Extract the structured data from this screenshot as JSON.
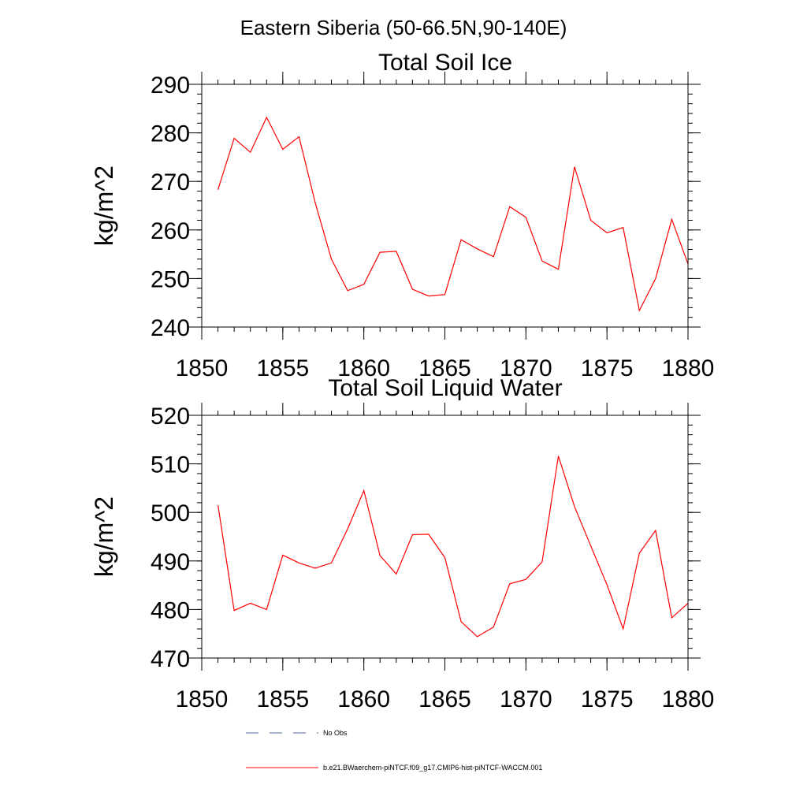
{
  "figure_title": "Eastern Siberia (50-66.5N,90-140E)",
  "chart_data": [
    {
      "type": "line",
      "title": "Total Soil Ice",
      "xlabel": "",
      "ylabel": "kg/m^2",
      "xlim": [
        1850,
        1880
      ],
      "ylim": [
        240,
        290
      ],
      "xticks": [
        1850,
        1855,
        1860,
        1865,
        1870,
        1875,
        1880
      ],
      "yticks": [
        240,
        250,
        260,
        270,
        280,
        290
      ],
      "x_minor_step": 1,
      "y_minor_step": 2,
      "grid": false,
      "series": [
        {
          "name": "b.e21.BWaerchem-piNTCF.f09_g17.CMIP6-hist-piNTCF-WACCM.001",
          "color": "#ff0000",
          "x": [
            1851,
            1852,
            1853,
            1854,
            1855,
            1856,
            1857,
            1858,
            1859,
            1860,
            1861,
            1862,
            1863,
            1864,
            1865,
            1866,
            1867,
            1868,
            1869,
            1870,
            1871,
            1872,
            1873,
            1874,
            1875,
            1876,
            1877,
            1878,
            1879,
            1880
          ],
          "y": [
            268.3,
            278.9,
            276.0,
            283.2,
            276.6,
            279.2,
            265.6,
            254.0,
            247.5,
            248.8,
            255.4,
            255.6,
            247.8,
            246.4,
            246.7,
            258.0,
            256.1,
            254.5,
            264.8,
            262.6,
            253.6,
            251.9,
            273.0,
            262.0,
            259.4,
            260.5,
            243.4,
            250.0,
            262.2,
            253.0
          ]
        }
      ]
    },
    {
      "type": "line",
      "title": "Total Soil Liquid Water",
      "xlabel": "",
      "ylabel": "kg/m^2",
      "xlim": [
        1850,
        1880
      ],
      "ylim": [
        470,
        520
      ],
      "xticks": [
        1850,
        1855,
        1860,
        1865,
        1870,
        1875,
        1880
      ],
      "yticks": [
        470,
        480,
        490,
        500,
        510,
        520
      ],
      "x_minor_step": 1,
      "y_minor_step": 2,
      "grid": false,
      "series": [
        {
          "name": "b.e21.BWaerchem-piNTCF.f09_g17.CMIP6-hist-piNTCF-WACCM.001",
          "color": "#ff0000",
          "x": [
            1851,
            1852,
            1853,
            1854,
            1855,
            1856,
            1857,
            1858,
            1859,
            1860,
            1861,
            1862,
            1863,
            1864,
            1865,
            1866,
            1867,
            1868,
            1869,
            1870,
            1871,
            1872,
            1873,
            1874,
            1875,
            1876,
            1877,
            1878,
            1879,
            1880
          ],
          "y": [
            501.5,
            479.8,
            481.3,
            480.0,
            491.2,
            489.6,
            488.5,
            489.6,
            496.6,
            504.5,
            491.1,
            487.3,
            495.4,
            495.5,
            490.7,
            477.5,
            474.4,
            476.4,
            485.3,
            486.2,
            489.8,
            511.6,
            501.2,
            493.1,
            485.1,
            476.0,
            491.6,
            496.3,
            478.3,
            481.3
          ]
        }
      ]
    }
  ],
  "legend": {
    "placement": "bottom",
    "entries": [
      {
        "label": "No Obs",
        "color": "#5a6aa8",
        "style": "dashed"
      },
      {
        "label": "b.e21.BWaerchem-piNTCF.f09_g17.CMIP6-hist-piNTCF-WACCM.001",
        "color": "#ff0000",
        "style": "solid"
      }
    ]
  }
}
